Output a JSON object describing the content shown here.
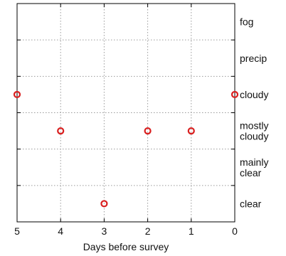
{
  "chart_data": {
    "type": "scatter",
    "xlabel": "Days before survey",
    "ylabel": "",
    "title": "",
    "x_ticks": [
      5,
      4,
      3,
      2,
      1,
      0
    ],
    "x_reversed": true,
    "xlim": [
      5,
      0
    ],
    "categories": [
      [
        "fog"
      ],
      [
        "precip"
      ],
      [
        "cloudy"
      ],
      [
        "mostly",
        "cloudy"
      ],
      [
        "mainly",
        "clear"
      ],
      [
        "clear"
      ]
    ],
    "grid": true,
    "marker": "open circle",
    "marker_color": "#d91f1f",
    "points": [
      {
        "x": 5,
        "y": "cloudy"
      },
      {
        "x": 4,
        "y": "mostly cloudy"
      },
      {
        "x": 3,
        "y": "clear"
      },
      {
        "x": 2,
        "y": "mostly cloudy"
      },
      {
        "x": 1,
        "y": "mostly cloudy"
      },
      {
        "x": 0,
        "y": "cloudy"
      }
    ]
  }
}
